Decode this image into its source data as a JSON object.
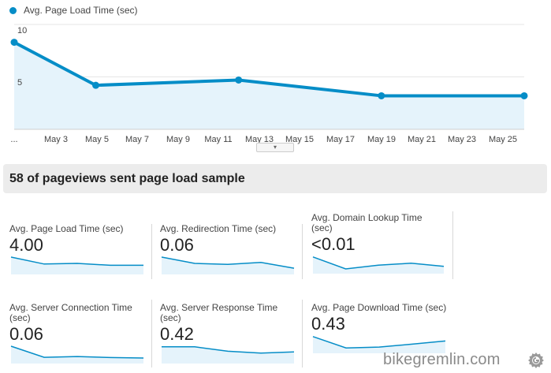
{
  "chart_data": {
    "type": "area",
    "series": [
      {
        "name": "Avg. Page Load Time (sec)",
        "x": [
          "May 1",
          "May 5",
          "May 12",
          "May 19",
          "May 26"
        ],
        "values": [
          8.3,
          4.2,
          4.7,
          3.2,
          3.2
        ]
      }
    ],
    "categories": [
      "...",
      "May 3",
      "May 5",
      "May 7",
      "May 9",
      "May 11",
      "May 13",
      "May 15",
      "May 17",
      "May 19",
      "May 21",
      "May 23",
      "May 25"
    ],
    "yticks": [
      "10",
      "5"
    ],
    "ylim": [
      0,
      10
    ],
    "grid": true,
    "legend": "top-left",
    "color": "#058dc7",
    "fill": "#e5f3fb"
  },
  "legend": {
    "label": "Avg. Page Load Time (sec)"
  },
  "summary": {
    "text": "58 of pageviews sent page load sample"
  },
  "metrics": [
    {
      "label": "Avg. Page Load Time (sec)",
      "value": "4.00",
      "spark": [
        1.0,
        0.45,
        0.5,
        0.35,
        0.35
      ]
    },
    {
      "label": "Avg. Redirection Time (sec)",
      "value": "0.06",
      "spark": [
        1.0,
        0.5,
        0.42,
        0.58,
        0.12
      ]
    },
    {
      "label": "Avg. Domain Lookup Time (sec)",
      "value": "<0.01",
      "spark": [
        0.95,
        0.0,
        0.3,
        0.45,
        0.2
      ]
    },
    {
      "label": "Avg. Server Connection Time (sec)",
      "value": "0.06",
      "spark": [
        1.0,
        0.12,
        0.18,
        0.1,
        0.06
      ]
    },
    {
      "label": "Avg. Server Response Time (sec)",
      "value": "0.42",
      "spark": [
        0.95,
        0.95,
        0.6,
        0.45,
        0.55
      ]
    },
    {
      "label": "Avg. Page Download Time (sec)",
      "value": "0.43",
      "spark": [
        0.95,
        0.05,
        0.12,
        0.35,
        0.6
      ]
    }
  ],
  "watermark": {
    "text": "bikegremlin.com"
  },
  "drag_handle_glyph": "▾"
}
